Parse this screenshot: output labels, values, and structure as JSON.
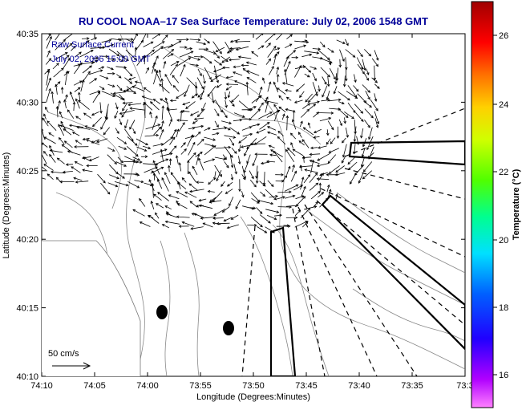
{
  "title": "RU COOL  NOAA–17  Sea Surface Temperature:  July 02, 2006 1548 GMT",
  "annotation": {
    "line1": "Raw Surface Current",
    "line2": "July 02, 2006 15:00 GMT"
  },
  "axes": {
    "xlabel": "Longitude (Degrees:Minutes)",
    "ylabel": "Latitude (Degrees:Minutes)",
    "xticks": [
      "74:10",
      "74:05",
      "74:00",
      "73:55",
      "73:50",
      "73:45",
      "73:40",
      "73:35",
      "73:3"
    ],
    "yticks": [
      "40:35",
      "40:30",
      "40:25",
      "40:20",
      "40:15",
      "40:10"
    ]
  },
  "scale_label": "50 cm/s",
  "colorbar": {
    "label": "Temperature (°C)",
    "ticks": [
      "26",
      "24",
      "22",
      "20",
      "18",
      "16"
    ],
    "colors": [
      "#b00000",
      "#ff0000",
      "#ff8000",
      "#ffff00",
      "#80ff00",
      "#00ff60",
      "#00ffff",
      "#0080ff",
      "#0000ff",
      "#8000ff",
      "#ff80ff"
    ]
  },
  "map_colors": {
    "contours": "#888888",
    "vectors": "#000000",
    "dots": "#000000"
  }
}
